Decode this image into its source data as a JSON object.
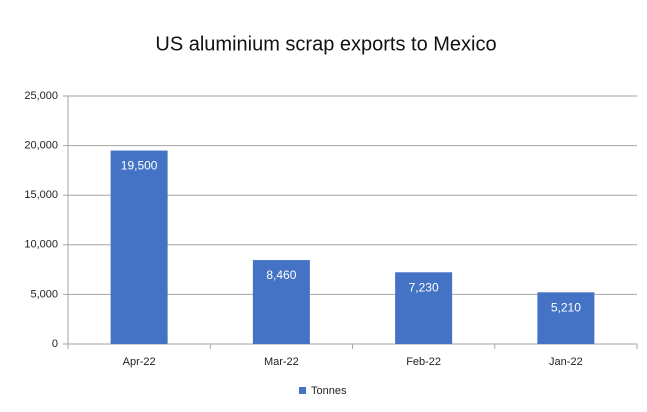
{
  "chart_data": {
    "type": "bar",
    "title": "US aluminium scrap exports to Mexico",
    "categories": [
      "Apr-22",
      "Mar-22",
      "Feb-22",
      "Jan-22"
    ],
    "series": [
      {
        "name": "Tonnes",
        "color": "#4472c4",
        "values": [
          19500,
          8460,
          7230,
          5210
        ],
        "value_labels": [
          "19,500",
          "8,460",
          "7,230",
          "5,210"
        ]
      }
    ],
    "ylim": [
      0,
      25000
    ],
    "yticks": [
      0,
      {
        "value": 5000,
        "label": "5,000"
      },
      {
        "value": 10000,
        "label": "10,000"
      },
      {
        "value": 15000,
        "label": "15,000"
      },
      {
        "value": 20000,
        "label": "20,000"
      },
      {
        "value": 25000,
        "label": "25,000"
      }
    ],
    "grid": true,
    "legend": "bottom"
  }
}
